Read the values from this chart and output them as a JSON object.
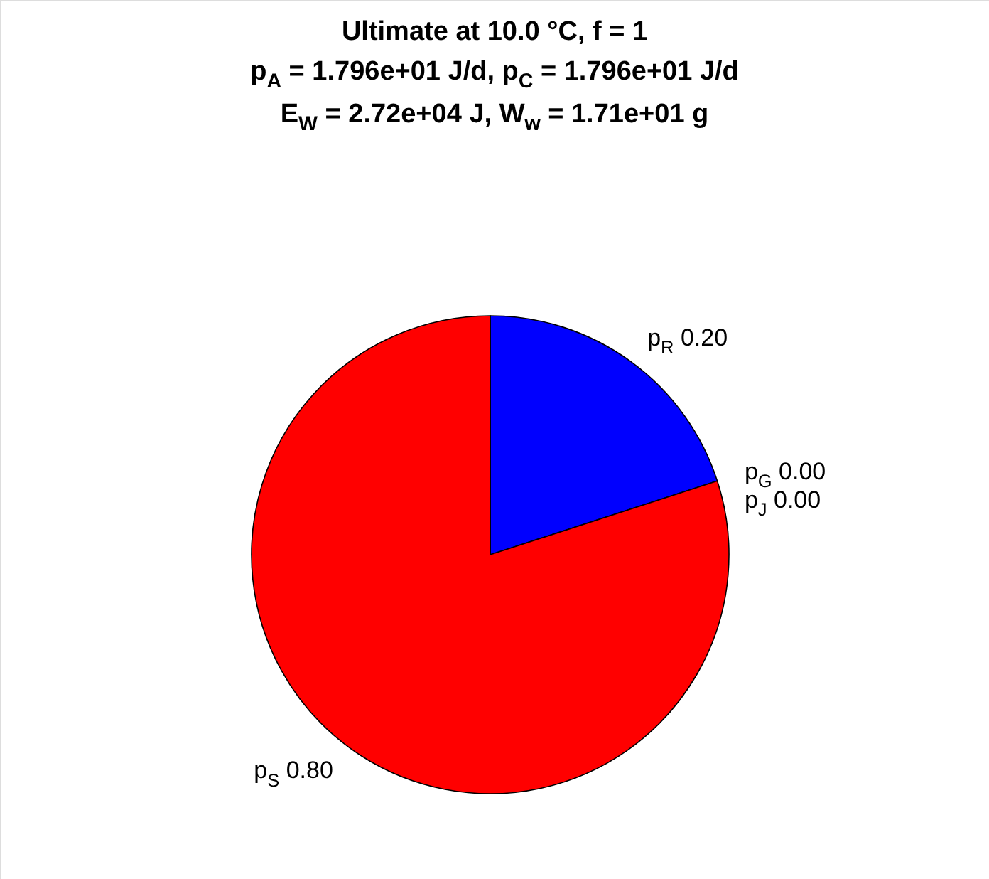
{
  "chart_data": {
    "type": "pie",
    "title": "Ultimate at 10.0 °C, f = 1",
    "subtitle": [
      "p$_{A}$ = 1.796e+01 J/d, p$_{C}$ = 1.796e+01 J/d",
      "E$_{W}$ = 2.72e+04 J, W$_{w}$ = 1.71e+01 g"
    ],
    "categories": [
      "p$_{R}$",
      "p$_{G}$",
      "p$_{J}$",
      "p$_{S}$"
    ],
    "values": [
      0.2,
      0,
      0,
      0.8
    ],
    "value_labels": [
      "0.20",
      "0.00",
      "0.00",
      "0.80"
    ],
    "colors": [
      "#0000ff",
      "#00ff00",
      "#ffff00",
      "#ff0000"
    ]
  }
}
